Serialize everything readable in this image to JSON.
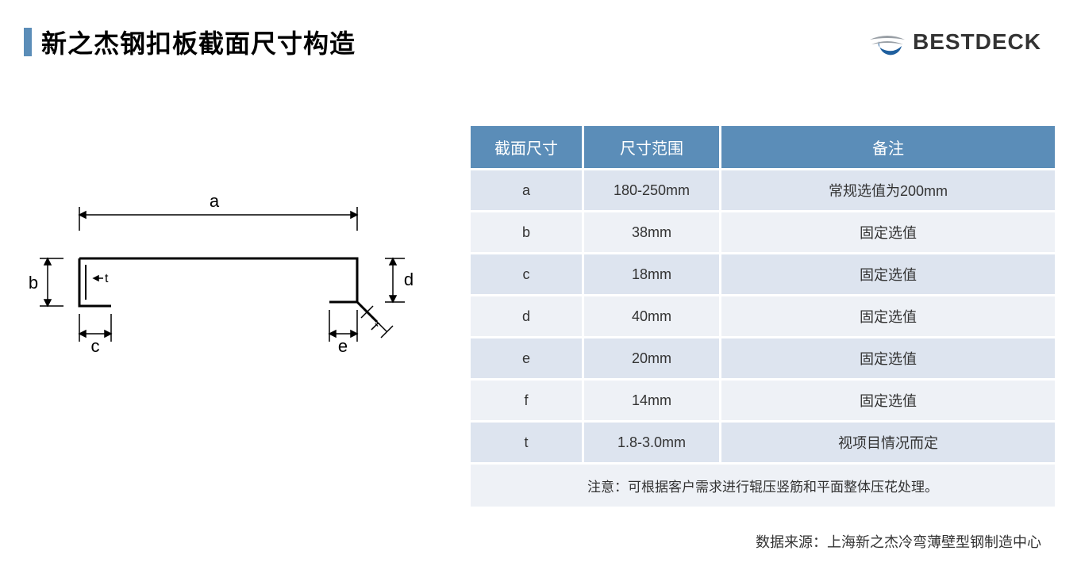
{
  "header": {
    "title": "新之杰钢扣板截面尺寸构造",
    "logo_text": "BESTDECK"
  },
  "diagram": {
    "labels": {
      "a": "a",
      "b": "b",
      "c": "c",
      "d": "d",
      "e": "e",
      "f": "f",
      "t": "t"
    },
    "stroke_color": "#000000",
    "stroke_width": 2,
    "label_fontsize": 22,
    "label_color": "#000000"
  },
  "table": {
    "headers": [
      "截面尺寸",
      "尺寸范围",
      "备注"
    ],
    "rows": [
      {
        "dim": "a",
        "range": "180-250mm",
        "note": "常规选值为200mm"
      },
      {
        "dim": "b",
        "range": "38mm",
        "note": "固定选值"
      },
      {
        "dim": "c",
        "range": "18mm",
        "note": "固定选值"
      },
      {
        "dim": "d",
        "range": "40mm",
        "note": "固定选值"
      },
      {
        "dim": "e",
        "range": "20mm",
        "note": "固定选值"
      },
      {
        "dim": "f",
        "range": "14mm",
        "note": "固定选值"
      },
      {
        "dim": "t",
        "range": "1.8-3.0mm",
        "note": "视项目情况而定"
      }
    ],
    "footer_note": "注意：可根据客户需求进行辊压竖筋和平面整体压花处理。",
    "header_bg": "#5b8db8",
    "header_color": "#ffffff",
    "row_even_bg": "#dde4ef",
    "row_odd_bg": "#eef1f6",
    "header_fontsize": 20,
    "cell_fontsize": 18
  },
  "source": "数据来源：上海新之杰冷弯薄壁型钢制造中心",
  "logo_colors": {
    "swoosh": "#9aa0a6",
    "circle": "#1f5f9e"
  }
}
